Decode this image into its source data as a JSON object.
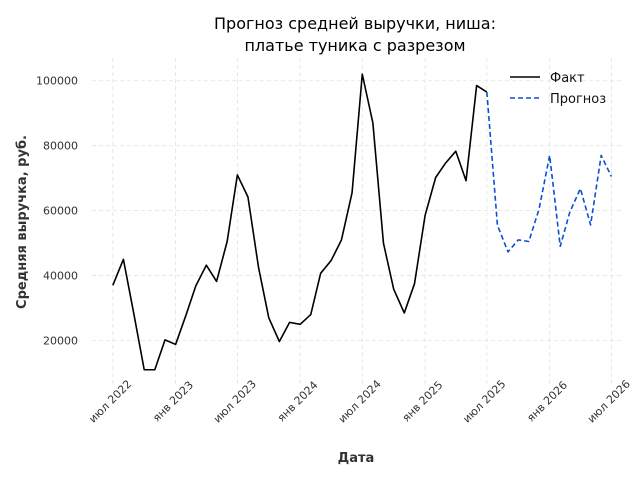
{
  "chart_data": {
    "type": "line",
    "title": [
      "Прогноз средней выручки, ниша:",
      "платье туника с разрезом"
    ],
    "xlabel": "Дата",
    "ylabel": "Средняя выручка, руб.",
    "xlim": [
      "2022-05-01",
      "2026-08-01"
    ],
    "ylim": [
      6000,
      107000
    ],
    "yticks": [
      20000,
      40000,
      60000,
      80000,
      100000
    ],
    "xticks": [
      {
        "date": "2022-07-01",
        "label": "июл 2022"
      },
      {
        "date": "2023-01-01",
        "label": "янв 2023"
      },
      {
        "date": "2023-07-01",
        "label": "июл 2023"
      },
      {
        "date": "2024-01-01",
        "label": "янв 2024"
      },
      {
        "date": "2024-07-01",
        "label": "июл 2024"
      },
      {
        "date": "2025-01-01",
        "label": "янв 2025"
      },
      {
        "date": "2025-07-01",
        "label": "июл 2025"
      },
      {
        "date": "2026-01-01",
        "label": "янв 2026"
      },
      {
        "date": "2026-07-01",
        "label": "июл 2026"
      }
    ],
    "grid": true,
    "legend_position": "top-right",
    "series": [
      {
        "name": "Факт",
        "color": "#000000",
        "style": "solid",
        "points": [
          [
            "2022-07-01",
            37000
          ],
          [
            "2022-08-01",
            45000
          ],
          [
            "2022-09-01",
            28000
          ],
          [
            "2022-10-01",
            11000
          ],
          [
            "2022-11-01",
            11000
          ],
          [
            "2022-12-01",
            20200
          ],
          [
            "2023-01-01",
            18800
          ],
          [
            "2023-02-01",
            28000
          ],
          [
            "2023-03-01",
            36800
          ],
          [
            "2023-04-01",
            43200
          ],
          [
            "2023-05-01",
            38200
          ],
          [
            "2023-06-01",
            50500
          ],
          [
            "2023-07-01",
            71000
          ],
          [
            "2023-08-01",
            64200
          ],
          [
            "2023-09-01",
            42500
          ],
          [
            "2023-10-01",
            27000
          ],
          [
            "2023-11-01",
            19700
          ],
          [
            "2023-12-01",
            25600
          ],
          [
            "2024-01-01",
            25000
          ],
          [
            "2024-02-01",
            28000
          ],
          [
            "2024-03-01",
            40700
          ],
          [
            "2024-04-01",
            44700
          ],
          [
            "2024-05-01",
            51000
          ],
          [
            "2024-06-01",
            65500
          ],
          [
            "2024-07-01",
            102000
          ],
          [
            "2024-08-01",
            87000
          ],
          [
            "2024-09-01",
            50000
          ],
          [
            "2024-10-01",
            35800
          ],
          [
            "2024-11-01",
            28500
          ],
          [
            "2024-12-01",
            37500
          ],
          [
            "2025-01-01",
            58500
          ],
          [
            "2025-02-01",
            70200
          ],
          [
            "2025-03-01",
            74500
          ],
          [
            "2025-04-01",
            78300
          ],
          [
            "2025-05-01",
            69200
          ],
          [
            "2025-06-01",
            98500
          ],
          [
            "2025-07-01",
            96500
          ]
        ]
      },
      {
        "name": "Прогноз",
        "color": "#0b4fd8",
        "style": "dashed",
        "points": [
          [
            "2025-07-01",
            96500
          ],
          [
            "2025-08-01",
            55500
          ],
          [
            "2025-09-01",
            47300
          ],
          [
            "2025-10-01",
            51000
          ],
          [
            "2025-11-01",
            50500
          ],
          [
            "2025-12-01",
            60500
          ],
          [
            "2026-01-01",
            77000
          ],
          [
            "2026-02-01",
            49000
          ],
          [
            "2026-03-01",
            59500
          ],
          [
            "2026-04-01",
            66800
          ],
          [
            "2026-05-01",
            55600
          ],
          [
            "2026-06-01",
            77000
          ],
          [
            "2026-07-01",
            70500
          ]
        ]
      }
    ]
  }
}
